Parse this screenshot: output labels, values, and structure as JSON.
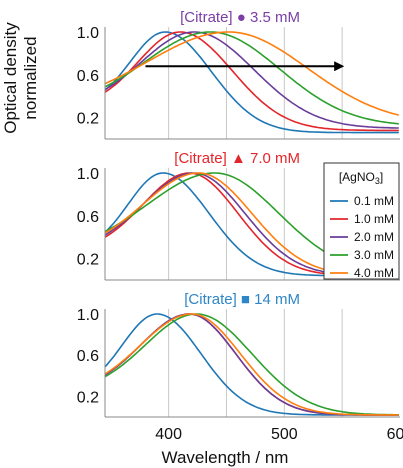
{
  "chart_data": {
    "type": "line",
    "ylabel_lines": [
      "Optical density",
      "normalized"
    ],
    "xlabel": "Wavelength / nm",
    "xlim": [
      345,
      600
    ],
    "ylim": [
      0,
      1.0
    ],
    "xticks": [
      400,
      500,
      600
    ],
    "yticks": [
      1.0,
      0.6,
      0.2
    ],
    "ytick_labels": [
      "1.0",
      "0.6",
      "0.2"
    ],
    "grid_x": [
      400,
      450,
      500,
      550
    ],
    "legend": {
      "title": "[AgNO3]",
      "title_main": "[AgNO",
      "title_sub": "3",
      "title_end": "]",
      "entries": [
        "0.1 mM",
        "1.0 mM",
        "2.0 mM",
        "3.0 mM",
        "4.0 mM"
      ]
    },
    "series_colors": [
      "#1f77b4",
      "#e3262b",
      "#6a3d9a",
      "#2ca02c",
      "#ff7f0e"
    ],
    "arrow": {
      "x_start": 380,
      "x_end": 550,
      "y": 0.68
    },
    "panels": [
      {
        "label": "[Citrate] ● 3.5 mM",
        "label_color": "#7b3fa6",
        "series": [
          {
            "name": "0.1 mM",
            "peak": 397,
            "w_left": 30,
            "w_right": 40,
            "base_left": 0.3,
            "base_right": 0.06,
            "x": [
              345,
              360,
              380,
              400,
              420,
              440,
              460,
              480,
              500,
              520,
              550,
              600
            ],
            "values": [
              0.34,
              0.55,
              0.86,
              1.0,
              0.86,
              0.58,
              0.36,
              0.22,
              0.14,
              0.09,
              0.06,
              0.05
            ]
          },
          {
            "name": "1.0 mM",
            "peak": 410,
            "w_left": 36,
            "w_right": 45,
            "base_left": 0.3,
            "base_right": 0.08,
            "x": [
              345,
              360,
              380,
              410,
              430,
              450,
              470,
              500,
              520,
              550,
              600
            ],
            "values": [
              0.33,
              0.48,
              0.7,
              1.0,
              0.93,
              0.75,
              0.55,
              0.3,
              0.2,
              0.12,
              0.08
            ]
          },
          {
            "name": "2.0 mM",
            "peak": 422,
            "w_left": 45,
            "w_right": 52,
            "base_left": 0.3,
            "base_right": 0.1,
            "x": [
              345,
              360,
              380,
              400,
              422,
              440,
              460,
              480,
              500,
              520,
              550,
              600
            ],
            "values": [
              0.33,
              0.44,
              0.6,
              0.8,
              1.0,
              0.94,
              0.8,
              0.63,
              0.47,
              0.33,
              0.2,
              0.1
            ]
          },
          {
            "name": "3.0 mM",
            "peak": 436,
            "w_left": 56,
            "w_right": 60,
            "base_left": 0.3,
            "base_right": 0.12,
            "x": [
              345,
              360,
              380,
              400,
              420,
              436,
              460,
              480,
              500,
              520,
              550,
              600
            ],
            "values": [
              0.32,
              0.4,
              0.52,
              0.66,
              0.86,
              1.0,
              0.88,
              0.72,
              0.56,
              0.42,
              0.27,
              0.13
            ]
          },
          {
            "name": "4.0 mM",
            "peak": 452,
            "w_left": 70,
            "w_right": 68,
            "base_left": 0.3,
            "base_right": 0.14,
            "x": [
              345,
              360,
              380,
              400,
              420,
              440,
              452,
              480,
              500,
              520,
              550,
              600
            ],
            "values": [
              0.32,
              0.38,
              0.48,
              0.6,
              0.74,
              0.91,
              1.0,
              0.85,
              0.68,
              0.53,
              0.37,
              0.2
            ]
          }
        ]
      },
      {
        "label": "[Citrate] ▲ 7.0 mM",
        "label_color": "#e3262b",
        "series": [
          {
            "name": "0.1 mM",
            "peak": 395,
            "w_left": 30,
            "w_right": 40,
            "base_left": 0.26,
            "base_right": 0.04,
            "x": [
              345,
              360,
              380,
              395,
              420,
              440,
              460,
              480,
              500,
              520,
              550,
              600
            ],
            "values": [
              0.28,
              0.5,
              0.82,
              1.0,
              0.82,
              0.55,
              0.34,
              0.21,
              0.13,
              0.08,
              0.05,
              0.03
            ]
          },
          {
            "name": "1.0 mM",
            "peak": 418,
            "w_left": 40,
            "w_right": 42,
            "base_left": 0.26,
            "base_right": 0.04,
            "x": [
              345,
              360,
              380,
              400,
              418,
              440,
              460,
              480,
              500,
              520,
              550,
              600
            ],
            "values": [
              0.28,
              0.42,
              0.64,
              0.87,
              1.0,
              0.88,
              0.64,
              0.42,
              0.27,
              0.17,
              0.08,
              0.04
            ]
          },
          {
            "name": "2.0 mM",
            "peak": 422,
            "w_left": 44,
            "w_right": 44,
            "base_left": 0.26,
            "base_right": 0.04,
            "x": [
              345,
              360,
              380,
              400,
              422,
              440,
              460,
              480,
              500,
              520,
              550,
              600
            ],
            "values": [
              0.28,
              0.4,
              0.6,
              0.82,
              1.0,
              0.91,
              0.68,
              0.46,
              0.3,
              0.19,
              0.09,
              0.04
            ]
          },
          {
            "name": "3.0 mM",
            "peak": 440,
            "w_left": 58,
            "w_right": 55,
            "base_left": 0.26,
            "base_right": 0.05,
            "x": [
              345,
              360,
              380,
              400,
              420,
              440,
              460,
              480,
              500,
              520,
              550,
              600
            ],
            "values": [
              0.28,
              0.37,
              0.52,
              0.68,
              0.86,
              1.0,
              0.93,
              0.75,
              0.56,
              0.4,
              0.22,
              0.08
            ]
          },
          {
            "name": "4.0 mM",
            "peak": 426,
            "w_left": 48,
            "w_right": 46,
            "base_left": 0.26,
            "base_right": 0.04,
            "x": [
              345,
              360,
              380,
              400,
              426,
              440,
              460,
              480,
              500,
              520,
              550,
              600
            ],
            "values": [
              0.28,
              0.39,
              0.58,
              0.78,
              1.0,
              0.95,
              0.75,
              0.52,
              0.35,
              0.22,
              0.1,
              0.05
            ]
          }
        ]
      },
      {
        "label": "[Citrate] ■ 14 mM",
        "label_color": "#2e86c8",
        "series": [
          {
            "name": "0.1 mM",
            "peak": 390,
            "w_left": 30,
            "w_right": 38,
            "base_left": 0.24,
            "base_right": 0.02,
            "x": [
              345,
              360,
              380,
              390,
              410,
              430,
              450,
              470,
              500,
              520,
              550,
              600
            ],
            "values": [
              0.26,
              0.5,
              0.88,
              1.0,
              0.88,
              0.62,
              0.38,
              0.22,
              0.1,
              0.06,
              0.03,
              0.02
            ]
          },
          {
            "name": "1.0 mM",
            "peak": 418,
            "w_left": 42,
            "w_right": 40,
            "base_left": 0.24,
            "base_right": 0.02,
            "x": [
              345,
              360,
              380,
              400,
              418,
              440,
              460,
              480,
              500,
              520,
              550,
              600
            ],
            "values": [
              0.26,
              0.4,
              0.62,
              0.86,
              1.0,
              0.86,
              0.6,
              0.38,
              0.22,
              0.13,
              0.06,
              0.02
            ]
          },
          {
            "name": "2.0 mM",
            "peak": 418,
            "w_left": 42,
            "w_right": 40,
            "base_left": 0.24,
            "base_right": 0.02,
            "x": [
              345,
              360,
              380,
              400,
              418,
              440,
              460,
              480,
              500,
              520,
              550,
              600
            ],
            "values": [
              0.26,
              0.4,
              0.62,
              0.86,
              1.0,
              0.86,
              0.6,
              0.38,
              0.22,
              0.13,
              0.06,
              0.02
            ]
          },
          {
            "name": "3.0 mM",
            "peak": 424,
            "w_left": 44,
            "w_right": 48,
            "base_left": 0.24,
            "base_right": 0.02,
            "x": [
              345,
              360,
              380,
              400,
              424,
              440,
              460,
              480,
              500,
              520,
              550,
              600
            ],
            "values": [
              0.26,
              0.39,
              0.59,
              0.81,
              1.0,
              0.94,
              0.74,
              0.52,
              0.34,
              0.21,
              0.09,
              0.03
            ]
          },
          {
            "name": "4.0 mM",
            "peak": 420,
            "w_left": 44,
            "w_right": 42,
            "base_left": 0.24,
            "base_right": 0.02,
            "x": [
              345,
              360,
              380,
              400,
              420,
              440,
              460,
              480,
              500,
              520,
              550,
              600
            ],
            "values": [
              0.26,
              0.4,
              0.6,
              0.84,
              1.0,
              0.89,
              0.64,
              0.42,
              0.25,
              0.15,
              0.06,
              0.02
            ]
          }
        ]
      }
    ]
  }
}
